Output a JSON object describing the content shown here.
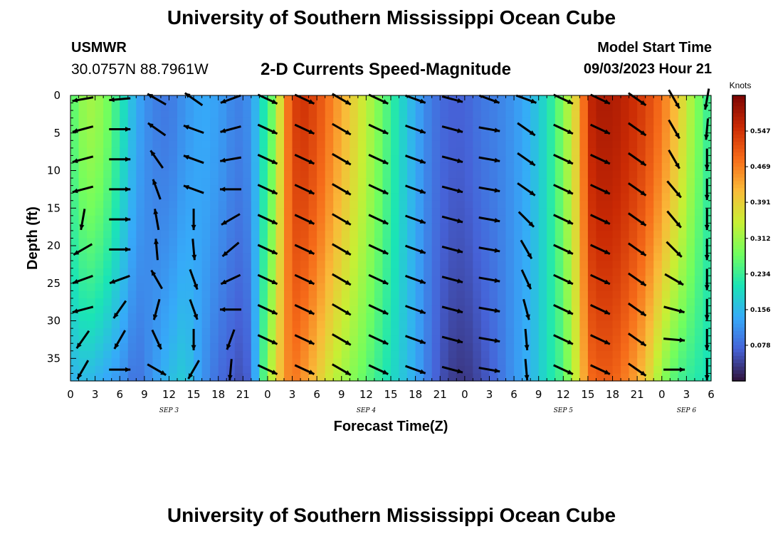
{
  "header": {
    "title": "University of Southern Mississippi Ocean Cube",
    "station": "USMWR",
    "coordinates": "30.0757N  88.7961W",
    "subtitle": "2-D Currents Speed-Magnitude",
    "start_label": "Model Start Time",
    "start_value": "09/03/2023 Hour 21"
  },
  "footer": {
    "title": "University of Southern Mississippi Ocean Cube"
  },
  "colors": {
    "arrow": "#000000",
    "colormap": [
      "#30123b",
      "#4662d7",
      "#36aaf9",
      "#1ae4b6",
      "#72fe5e",
      "#c8ef34",
      "#faba39",
      "#f66b19",
      "#ca2a04",
      "#7a0403"
    ]
  },
  "chart_data": {
    "type": "heatmap",
    "title": "2-D Currents Speed-Magnitude",
    "xlabel": "Forecast Time(Z)",
    "ylabel": "Depth (ft)",
    "colorbar_title": "Knots",
    "colorbar_ticks": [
      0.078,
      0.156,
      0.234,
      0.312,
      0.391,
      0.469,
      0.547
    ],
    "color_range": [
      0.0,
      0.625
    ],
    "x_range_hours": [
      0,
      78
    ],
    "x_tick_labels": [
      "0",
      "3",
      "6",
      "9",
      "12",
      "15",
      "18",
      "21",
      "0",
      "3",
      "6",
      "9",
      "12",
      "15",
      "18",
      "21",
      "0",
      "3",
      "6",
      "9",
      "12",
      "15",
      "18",
      "21",
      "0",
      "3",
      "6"
    ],
    "day_labels": [
      {
        "label": "SEP 3",
        "hour": 12
      },
      {
        "label": "SEP 4",
        "hour": 36
      },
      {
        "label": "SEP 5",
        "hour": 60
      },
      {
        "label": "SEP 6",
        "hour": 75
      }
    ],
    "y_range_ft": [
      0,
      38
    ],
    "y_ticks": [
      0,
      5,
      10,
      15,
      20,
      25,
      30,
      35
    ],
    "speed_profile": {
      "hours": [
        0,
        2,
        4,
        6,
        8,
        10,
        12,
        14,
        16,
        18,
        20,
        21,
        22,
        23,
        24,
        25,
        26,
        27,
        28,
        30,
        32,
        34,
        36,
        38,
        40,
        42,
        44,
        46,
        48,
        50,
        52,
        54,
        56,
        58,
        60,
        62,
        63,
        64,
        66,
        68,
        70,
        72,
        74,
        76,
        78
      ],
      "surface_knots": [
        0.25,
        0.32,
        0.3,
        0.22,
        0.14,
        0.1,
        0.09,
        0.12,
        0.14,
        0.13,
        0.1,
        0.1,
        0.12,
        0.18,
        0.24,
        0.3,
        0.44,
        0.52,
        0.55,
        0.52,
        0.46,
        0.4,
        0.34,
        0.27,
        0.2,
        0.14,
        0.09,
        0.07,
        0.07,
        0.09,
        0.1,
        0.12,
        0.15,
        0.2,
        0.29,
        0.42,
        0.55,
        0.58,
        0.58,
        0.56,
        0.53,
        0.48,
        0.4,
        0.3,
        0.22
      ],
      "bottom_knots": [
        0.15,
        0.16,
        0.14,
        0.12,
        0.08,
        0.12,
        0.16,
        0.18,
        0.12,
        0.08,
        0.06,
        0.05,
        0.08,
        0.2,
        0.3,
        0.38,
        0.44,
        0.48,
        0.46,
        0.4,
        0.34,
        0.3,
        0.26,
        0.22,
        0.18,
        0.14,
        0.08,
        0.04,
        0.03,
        0.05,
        0.08,
        0.12,
        0.15,
        0.2,
        0.25,
        0.38,
        0.48,
        0.5,
        0.5,
        0.46,
        0.4,
        0.3,
        0.24,
        0.22,
        0.2
      ]
    },
    "vectors": {
      "hours": [
        1.5,
        6,
        10.5,
        15,
        19.5,
        24,
        28.5,
        33,
        37.5,
        42,
        46.5,
        51,
        55.5,
        60,
        64.5,
        69,
        73.5,
        77.5
      ],
      "depths_ft": [
        0.5,
        4.5,
        8.5,
        12.5,
        16.5,
        20.5,
        24.5,
        28.5,
        32.5,
        36.5
      ],
      "directions_deg": [
        [
          170,
          175,
          210,
          215,
          160,
          25,
          25,
          30,
          25,
          20,
          15,
          20,
          20,
          25,
          25,
          35,
          60,
          100
        ],
        [
          165,
          0,
          215,
          200,
          165,
          25,
          25,
          30,
          25,
          20,
          15,
          10,
          35,
          25,
          25,
          35,
          60,
          95
        ],
        [
          165,
          0,
          235,
          200,
          170,
          25,
          25,
          30,
          25,
          20,
          15,
          10,
          35,
          25,
          25,
          35,
          60,
          90
        ],
        [
          165,
          0,
          250,
          200,
          180,
          25,
          25,
          30,
          25,
          20,
          15,
          10,
          35,
          25,
          25,
          35,
          50,
          90
        ],
        [
          100,
          0,
          260,
          90,
          150,
          25,
          25,
          30,
          25,
          20,
          15,
          10,
          45,
          25,
          25,
          35,
          50,
          90
        ],
        [
          150,
          0,
          265,
          85,
          140,
          25,
          25,
          30,
          25,
          20,
          15,
          10,
          60,
          25,
          25,
          35,
          45,
          90
        ],
        [
          160,
          160,
          240,
          70,
          155,
          25,
          25,
          30,
          25,
          20,
          15,
          10,
          65,
          25,
          25,
          35,
          30,
          90
        ],
        [
          165,
          125,
          105,
          70,
          180,
          25,
          25,
          30,
          25,
          20,
          15,
          10,
          75,
          25,
          25,
          35,
          15,
          90
        ],
        [
          125,
          120,
          65,
          90,
          110,
          25,
          25,
          30,
          25,
          20,
          15,
          10,
          85,
          25,
          25,
          35,
          5,
          90
        ],
        [
          120,
          0,
          30,
          120,
          95,
          25,
          25,
          30,
          25,
          20,
          15,
          10,
          85,
          25,
          25,
          35,
          0,
          90
        ]
      ]
    }
  }
}
